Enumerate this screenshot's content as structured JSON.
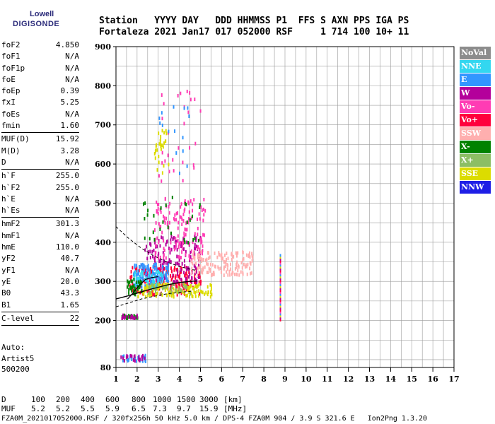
{
  "header": {
    "line1": "Station   YYYY DAY   DDD HHMMSS P1  FFS S AXN PPS IGA PS",
    "line2": "Fortaleza 2021 Jan17 017 052000 RSF     1 714 100 10+ 11"
  },
  "logo": {
    "top": "Lowell",
    "bottom": "DIGISONDE"
  },
  "params_group1": [
    {
      "label": "foF2",
      "value": "4.850"
    },
    {
      "label": "foF1",
      "value": "N/A"
    },
    {
      "label": "foF1p",
      "value": "N/A"
    },
    {
      "label": "foE",
      "value": "N/A"
    },
    {
      "label": "foEp",
      "value": "0.39"
    },
    {
      "label": "fxI",
      "value": "5.25"
    },
    {
      "label": "foEs",
      "value": "N/A"
    },
    {
      "label": "fmin",
      "value": "1.60"
    }
  ],
  "params_group2": [
    {
      "label": "MUF(D)",
      "value": "15.92"
    },
    {
      "label": "M(D)",
      "value": "3.28"
    },
    {
      "label": "D",
      "value": "N/A"
    }
  ],
  "params_group3": [
    {
      "label": "h`F",
      "value": "255.0"
    },
    {
      "label": "h`F2",
      "value": "255.0"
    },
    {
      "label": "h`E",
      "value": "N/A"
    },
    {
      "label": "h`Es",
      "value": "N/A"
    }
  ],
  "params_group4": [
    {
      "label": "hmF2",
      "value": "301.3"
    },
    {
      "label": "hmF1",
      "value": "N/A"
    },
    {
      "label": "hmE",
      "value": "110.0"
    },
    {
      "label": "yF2",
      "value": "40.7"
    },
    {
      "label": "yF1",
      "value": "N/A"
    },
    {
      "label": "yE",
      "value": "20.0"
    },
    {
      "label": "B0",
      "value": "43.3"
    },
    {
      "label": "B1",
      "value": "1.65"
    }
  ],
  "params_group5": [
    {
      "label": "C-level",
      "value": "22"
    }
  ],
  "auto": {
    "line1": "Auto:",
    "line2": "Artist5",
    "line3": "500200"
  },
  "muf_table": {
    "d_label": "D",
    "d_values": [
      "100",
      "200",
      "400",
      "600",
      "800",
      "1000",
      "1500",
      "3000"
    ],
    "d_unit": "[km]",
    "muf_label": "MUF",
    "muf_values": [
      "5.2",
      "5.2",
      "5.5",
      "5.9",
      "6.5",
      "7.3",
      "9.7",
      "15.9"
    ],
    "muf_unit": "[MHz]"
  },
  "footer": "FZA0M_2021017052000.RSF / 320fx256h 50 kHz 5.0 km / DPS-4 FZA0M 904 / 3.9 S 321.6 E   Ion2Png 1.3.20",
  "legend": [
    {
      "label": "NoVal",
      "color": "#8c8c8c"
    },
    {
      "label": "NNE",
      "color": "#33d7f0"
    },
    {
      "label": "E",
      "color": "#3296ff"
    },
    {
      "label": "W",
      "color": "#b4009b"
    },
    {
      "label": "Vo-",
      "color": "#ff3cb4"
    },
    {
      "label": "Vo+",
      "color": "#ff003c"
    },
    {
      "label": "SSW",
      "color": "#ffafaf"
    },
    {
      "label": "X-",
      "color": "#008200"
    },
    {
      "label": "X+",
      "color": "#8cbe64"
    },
    {
      "label": "SSE",
      "color": "#dcdc00"
    },
    {
      "label": "NNW",
      "color": "#1e1ee6"
    }
  ],
  "chart_data": {
    "type": "scatter",
    "xlim": [
      1,
      17
    ],
    "ylim": [
      80,
      900
    ],
    "x_ticks": [
      1,
      2,
      3,
      4,
      5,
      6,
      7,
      8,
      9,
      10,
      11,
      12,
      13,
      14,
      15,
      16,
      17
    ],
    "y_ticks": [
      80,
      200,
      300,
      400,
      500,
      600,
      700,
      800,
      900
    ],
    "grid": true,
    "legend_placement": "right",
    "clusters": [
      {
        "x": [
          1.6,
          5.0
        ],
        "y": [
          270,
          340
        ],
        "color": "#ff003c",
        "count": 180
      },
      {
        "x": [
          2.2,
          5.0
        ],
        "y": [
          300,
          420
        ],
        "color": "#b4009b",
        "count": 160
      },
      {
        "x": [
          2.8,
          5.2
        ],
        "y": [
          360,
          520
        ],
        "color": "#ff3cb4",
        "count": 140
      },
      {
        "x": [
          1.8,
          3.5
        ],
        "y": [
          290,
          350
        ],
        "color": "#3296ff",
        "count": 120
      },
      {
        "x": [
          1.8,
          3.2
        ],
        "y": [
          290,
          330
        ],
        "color": "#33d7f0",
        "count": 60
      },
      {
        "x": [
          2.0,
          5.5
        ],
        "y": [
          265,
          300
        ],
        "color": "#dcdc00",
        "count": 110
      },
      {
        "x": [
          4.5,
          7.5
        ],
        "y": [
          320,
          380
        ],
        "color": "#ffafaf",
        "count": 150
      },
      {
        "x": [
          1.5,
          2.2
        ],
        "y": [
          270,
          310
        ],
        "color": "#008200",
        "count": 40
      },
      {
        "x": [
          2.5,
          4.5
        ],
        "y": [
          270,
          300
        ],
        "color": "#8cbe64",
        "count": 40
      },
      {
        "x": [
          2.0,
          5.0
        ],
        "y": [
          400,
          520
        ],
        "color": "#008200",
        "count": 30
      },
      {
        "x": [
          2.8,
          3.5
        ],
        "y": [
          580,
          690
        ],
        "color": "#dcdc00",
        "count": 30
      },
      {
        "x": [
          3.0,
          5.0
        ],
        "y": [
          560,
          790
        ],
        "color": "#ff3cb4",
        "count": 30
      },
      {
        "x": [
          3.0,
          4.5
        ],
        "y": [
          570,
          760
        ],
        "color": "#3296ff",
        "count": 15
      },
      {
        "x": [
          1.2,
          2.0
        ],
        "y": [
          210,
          218
        ],
        "color": "#008200",
        "count": 25
      },
      {
        "x": [
          1.2,
          2.0
        ],
        "y": [
          210,
          218
        ],
        "color": "#b4009b",
        "count": 15
      },
      {
        "x": [
          1.2,
          2.4
        ],
        "y": [
          100,
          115
        ],
        "color": "#3296ff",
        "count": 25
      },
      {
        "x": [
          1.2,
          2.4
        ],
        "y": [
          100,
          115
        ],
        "color": "#b4009b",
        "count": 20
      }
    ],
    "vertical_column": {
      "x": 8.75,
      "y_from": 205,
      "y_to": 370
    },
    "profile_curve": {
      "x": [
        1.0,
        1.5,
        2.0,
        2.5,
        3.0,
        3.5,
        4.0,
        4.5,
        4.85
      ],
      "y": [
        255,
        262,
        270,
        278,
        285,
        292,
        297,
        300,
        301
      ]
    },
    "profile_curve2": {
      "x": [
        1.55,
        1.8,
        2.1,
        2.4,
        2.7,
        3.0
      ],
      "y": [
        255,
        270,
        290,
        305,
        310,
        312
      ]
    },
    "dashed_curve": {
      "x": [
        1.0,
        1.6,
        2.2,
        2.8,
        3.4,
        4.0,
        4.6,
        4.85
      ],
      "y": [
        440,
        410,
        385,
        365,
        350,
        338,
        330,
        328
      ]
    },
    "dashed_curve_low": {
      "x": [
        1.0,
        1.6,
        2.2,
        2.8,
        3.4,
        4.0,
        4.6
      ],
      "y": [
        235,
        245,
        255,
        262,
        268,
        272,
        275
      ]
    }
  }
}
